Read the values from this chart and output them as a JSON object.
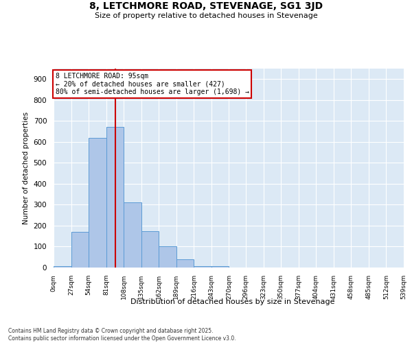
{
  "title": "8, LETCHMORE ROAD, STEVENAGE, SG1 3JD",
  "subtitle": "Size of property relative to detached houses in Stevenage",
  "xlabel": "Distribution of detached houses by size in Stevenage",
  "ylabel": "Number of detached properties",
  "bin_edges": [
    0,
    27,
    54,
    81,
    108,
    135,
    162,
    189,
    216,
    243,
    270,
    296,
    323,
    350,
    377,
    404,
    431,
    458,
    485,
    512,
    539
  ],
  "bar_heights": [
    5,
    170,
    620,
    670,
    310,
    175,
    100,
    40,
    5,
    5,
    1,
    0,
    0,
    0,
    0,
    0,
    0,
    0,
    0,
    0
  ],
  "bar_color": "#aec6e8",
  "bar_edge_color": "#5b9bd5",
  "vline_x": 95,
  "vline_color": "#cc0000",
  "ylim": [
    0,
    950
  ],
  "yticks": [
    0,
    100,
    200,
    300,
    400,
    500,
    600,
    700,
    800,
    900
  ],
  "annotation_text": "8 LETCHMORE ROAD: 95sqm\n← 20% of detached houses are smaller (427)\n80% of semi-detached houses are larger (1,698) →",
  "annotation_box_color": "#ffffff",
  "annotation_box_edge": "#cc0000",
  "bg_color": "#dce9f5",
  "footnote": "Contains HM Land Registry data © Crown copyright and database right 2025.\nContains public sector information licensed under the Open Government Licence v3.0.",
  "tick_labels": [
    "0sqm",
    "27sqm",
    "54sqm",
    "81sqm",
    "108sqm",
    "135sqm",
    "162sqm",
    "189sqm",
    "216sqm",
    "243sqm",
    "270sqm",
    "296sqm",
    "323sqm",
    "350sqm",
    "377sqm",
    "404sqm",
    "431sqm",
    "458sqm",
    "485sqm",
    "512sqm",
    "539sqm"
  ]
}
